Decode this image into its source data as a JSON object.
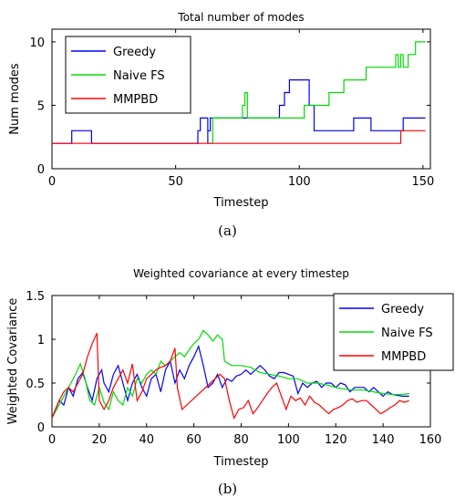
{
  "captions": [
    "(a)",
    "(b)"
  ],
  "chart_data": [
    {
      "type": "line",
      "title": "Total number of modes",
      "xlabel": "Timestep",
      "ylabel": "Num modes",
      "xlim": [
        0,
        153
      ],
      "ylim": [
        0,
        11
      ],
      "xticks": [
        0,
        50,
        100,
        150
      ],
      "yticks": [
        0,
        5,
        10
      ],
      "legend": {
        "placement": "top-left"
      },
      "series": [
        {
          "name": "Greedy",
          "color": "#0000ff",
          "step": true,
          "points": [
            [
              0,
              2
            ],
            [
              8,
              2
            ],
            [
              8,
              3
            ],
            [
              16,
              3
            ],
            [
              16,
              2
            ],
            [
              59,
              2
            ],
            [
              59,
              3
            ],
            [
              60,
              3
            ],
            [
              60,
              4
            ],
            [
              63,
              4
            ],
            [
              63,
              2
            ],
            [
              63,
              3
            ],
            [
              64,
              3
            ],
            [
              64,
              4
            ],
            [
              92,
              4
            ],
            [
              92,
              5
            ],
            [
              94,
              5
            ],
            [
              94,
              6
            ],
            [
              96,
              6
            ],
            [
              96,
              7
            ],
            [
              104,
              7
            ],
            [
              104,
              5
            ],
            [
              106,
              5
            ],
            [
              106,
              3
            ],
            [
              122,
              3
            ],
            [
              122,
              4
            ],
            [
              129,
              4
            ],
            [
              129,
              3
            ],
            [
              142,
              3
            ],
            [
              142,
              4
            ],
            [
              151,
              4
            ]
          ]
        },
        {
          "name": "Naive FS",
          "color": "#00dd00",
          "step": true,
          "points": [
            [
              63,
              2
            ],
            [
              65,
              2
            ],
            [
              65,
              4
            ],
            [
              77,
              4
            ],
            [
              77,
              5
            ],
            [
              78,
              5
            ],
            [
              78,
              6
            ],
            [
              79,
              6
            ],
            [
              79,
              4
            ],
            [
              102,
              4
            ],
            [
              102,
              5
            ],
            [
              112,
              5
            ],
            [
              112,
              6
            ],
            [
              118,
              6
            ],
            [
              118,
              7
            ],
            [
              127,
              7
            ],
            [
              127,
              8
            ],
            [
              139,
              8
            ],
            [
              139,
              9
            ],
            [
              140,
              9
            ],
            [
              140,
              8
            ],
            [
              141,
              8
            ],
            [
              141,
              9
            ],
            [
              142,
              9
            ],
            [
              142,
              8
            ],
            [
              144,
              8
            ],
            [
              144,
              9
            ],
            [
              147,
              9
            ],
            [
              147,
              10
            ],
            [
              151,
              10
            ]
          ]
        },
        {
          "name": "MMPBD",
          "color": "#ff0000",
          "step": true,
          "points": [
            [
              0,
              2
            ],
            [
              141,
              2
            ],
            [
              141,
              3
            ],
            [
              151,
              3
            ]
          ]
        }
      ]
    },
    {
      "type": "line",
      "title": "Weighted covariance at every timestep",
      "xlabel": "Timestep",
      "ylabel": "Weighted Covariance",
      "xlim": [
        0,
        160
      ],
      "ylim": [
        0,
        1.5
      ],
      "xticks": [
        0,
        20,
        40,
        60,
        80,
        100,
        120,
        140,
        160
      ],
      "yticks": [
        0,
        0.5,
        1,
        1.5
      ],
      "legend": {
        "placement": "top-right"
      },
      "series": [
        {
          "name": "Greedy",
          "color": "#0000ff",
          "points": [
            [
              0,
              0.1
            ],
            [
              3,
              0.3
            ],
            [
              5,
              0.25
            ],
            [
              7,
              0.45
            ],
            [
              9,
              0.35
            ],
            [
              11,
              0.55
            ],
            [
              13,
              0.62
            ],
            [
              15,
              0.45
            ],
            [
              17,
              0.3
            ],
            [
              19,
              0.55
            ],
            [
              21,
              0.65
            ],
            [
              22,
              0.5
            ],
            [
              24,
              0.4
            ],
            [
              26,
              0.6
            ],
            [
              28,
              0.7
            ],
            [
              30,
              0.5
            ],
            [
              32,
              0.3
            ],
            [
              34,
              0.5
            ],
            [
              36,
              0.6
            ],
            [
              38,
              0.45
            ],
            [
              40,
              0.35
            ],
            [
              42,
              0.55
            ],
            [
              44,
              0.6
            ],
            [
              46,
              0.4
            ],
            [
              48,
              0.65
            ],
            [
              50,
              0.75
            ],
            [
              52,
              0.5
            ],
            [
              54,
              0.65
            ],
            [
              56,
              0.55
            ],
            [
              58,
              0.7
            ],
            [
              60,
              0.8
            ],
            [
              62,
              0.92
            ],
            [
              64,
              0.7
            ],
            [
              66,
              0.45
            ],
            [
              68,
              0.5
            ],
            [
              70,
              0.6
            ],
            [
              72,
              0.45
            ],
            [
              74,
              0.55
            ],
            [
              76,
              0.52
            ],
            [
              78,
              0.58
            ],
            [
              80,
              0.6
            ],
            [
              82,
              0.65
            ],
            [
              84,
              0.6
            ],
            [
              86,
              0.65
            ],
            [
              88,
              0.7
            ],
            [
              90,
              0.65
            ],
            [
              92,
              0.58
            ],
            [
              94,
              0.55
            ],
            [
              96,
              0.62
            ],
            [
              98,
              0.62
            ],
            [
              100,
              0.6
            ],
            [
              102,
              0.58
            ],
            [
              104,
              0.38
            ],
            [
              106,
              0.5
            ],
            [
              108,
              0.45
            ],
            [
              110,
              0.5
            ],
            [
              112,
              0.52
            ],
            [
              114,
              0.45
            ],
            [
              116,
              0.5
            ],
            [
              118,
              0.5
            ],
            [
              120,
              0.45
            ],
            [
              122,
              0.5
            ],
            [
              124,
              0.48
            ],
            [
              126,
              0.4
            ],
            [
              128,
              0.45
            ],
            [
              130,
              0.45
            ],
            [
              132,
              0.45
            ],
            [
              134,
              0.4
            ],
            [
              136,
              0.45
            ],
            [
              138,
              0.4
            ],
            [
              140,
              0.35
            ],
            [
              142,
              0.4
            ],
            [
              144,
              0.37
            ],
            [
              146,
              0.36
            ],
            [
              148,
              0.35
            ],
            [
              150,
              0.35
            ],
            [
              151,
              0.35
            ]
          ]
        },
        {
          "name": "Naive FS",
          "color": "#00dd00",
          "points": [
            [
              0,
              0.1
            ],
            [
              4,
              0.3
            ],
            [
              6,
              0.4
            ],
            [
              8,
              0.5
            ],
            [
              10,
              0.6
            ],
            [
              12,
              0.72
            ],
            [
              14,
              0.55
            ],
            [
              16,
              0.3
            ],
            [
              18,
              0.25
            ],
            [
              20,
              0.45
            ],
            [
              22,
              0.28
            ],
            [
              24,
              0.2
            ],
            [
              26,
              0.4
            ],
            [
              28,
              0.3
            ],
            [
              30,
              0.25
            ],
            [
              32,
              0.45
            ],
            [
              34,
              0.35
            ],
            [
              36,
              0.55
            ],
            [
              38,
              0.5
            ],
            [
              40,
              0.6
            ],
            [
              42,
              0.65
            ],
            [
              44,
              0.6
            ],
            [
              46,
              0.75
            ],
            [
              48,
              0.7
            ],
            [
              50,
              0.75
            ],
            [
              52,
              0.8
            ],
            [
              54,
              0.85
            ],
            [
              56,
              0.8
            ],
            [
              58,
              0.88
            ],
            [
              60,
              0.95
            ],
            [
              62,
              1.0
            ],
            [
              64,
              1.1
            ],
            [
              66,
              1.05
            ],
            [
              68,
              0.98
            ],
            [
              70,
              1.05
            ],
            [
              72,
              1.0
            ],
            [
              73,
              0.75
            ],
            [
              76,
              0.7
            ],
            [
              80,
              0.7
            ],
            [
              84,
              0.68
            ],
            [
              88,
              0.62
            ],
            [
              92,
              0.6
            ],
            [
              96,
              0.58
            ],
            [
              100,
              0.55
            ],
            [
              104,
              0.55
            ],
            [
              108,
              0.5
            ],
            [
              112,
              0.5
            ],
            [
              116,
              0.48
            ],
            [
              120,
              0.45
            ],
            [
              124,
              0.43
            ],
            [
              128,
              0.42
            ],
            [
              132,
              0.42
            ],
            [
              136,
              0.4
            ],
            [
              140,
              0.38
            ],
            [
              144,
              0.37
            ],
            [
              148,
              0.37
            ],
            [
              151,
              0.38
            ]
          ]
        },
        {
          "name": "MMPBD",
          "color": "#ff0000",
          "points": [
            [
              0,
              0.1
            ],
            [
              3,
              0.3
            ],
            [
              5,
              0.4
            ],
            [
              7,
              0.45
            ],
            [
              9,
              0.4
            ],
            [
              11,
              0.5
            ],
            [
              13,
              0.6
            ],
            [
              15,
              0.8
            ],
            [
              17,
              0.95
            ],
            [
              19,
              1.07
            ],
            [
              20,
              0.3
            ],
            [
              22,
              0.2
            ],
            [
              24,
              0.3
            ],
            [
              26,
              0.45
            ],
            [
              28,
              0.55
            ],
            [
              30,
              0.65
            ],
            [
              32,
              0.5
            ],
            [
              34,
              0.72
            ],
            [
              36,
              0.3
            ],
            [
              38,
              0.4
            ],
            [
              40,
              0.55
            ],
            [
              42,
              0.6
            ],
            [
              44,
              0.65
            ],
            [
              46,
              0.68
            ],
            [
              48,
              0.7
            ],
            [
              50,
              0.75
            ],
            [
              52,
              0.9
            ],
            [
              53,
              0.45
            ],
            [
              55,
              0.2
            ],
            [
              57,
              0.25
            ],
            [
              59,
              0.3
            ],
            [
              61,
              0.35
            ],
            [
              63,
              0.4
            ],
            [
              65,
              0.45
            ],
            [
              67,
              0.5
            ],
            [
              69,
              0.55
            ],
            [
              71,
              0.6
            ],
            [
              73,
              0.55
            ],
            [
              75,
              0.3
            ],
            [
              77,
              0.1
            ],
            [
              79,
              0.2
            ],
            [
              81,
              0.22
            ],
            [
              83,
              0.3
            ],
            [
              85,
              0.15
            ],
            [
              87,
              0.22
            ],
            [
              89,
              0.3
            ],
            [
              91,
              0.38
            ],
            [
              93,
              0.45
            ],
            [
              95,
              0.5
            ],
            [
              97,
              0.35
            ],
            [
              99,
              0.2
            ],
            [
              101,
              0.35
            ],
            [
              103,
              0.3
            ],
            [
              105,
              0.33
            ],
            [
              107,
              0.25
            ],
            [
              109,
              0.35
            ],
            [
              111,
              0.28
            ],
            [
              113,
              0.25
            ],
            [
              115,
              0.2
            ],
            [
              117,
              0.15
            ],
            [
              119,
              0.2
            ],
            [
              121,
              0.22
            ],
            [
              123,
              0.25
            ],
            [
              125,
              0.3
            ],
            [
              127,
              0.32
            ],
            [
              129,
              0.28
            ],
            [
              131,
              0.3
            ],
            [
              133,
              0.3
            ],
            [
              135,
              0.25
            ],
            [
              137,
              0.2
            ],
            [
              139,
              0.15
            ],
            [
              141,
              0.18
            ],
            [
              143,
              0.22
            ],
            [
              145,
              0.25
            ],
            [
              147,
              0.3
            ],
            [
              149,
              0.28
            ],
            [
              151,
              0.3
            ]
          ]
        }
      ]
    }
  ]
}
